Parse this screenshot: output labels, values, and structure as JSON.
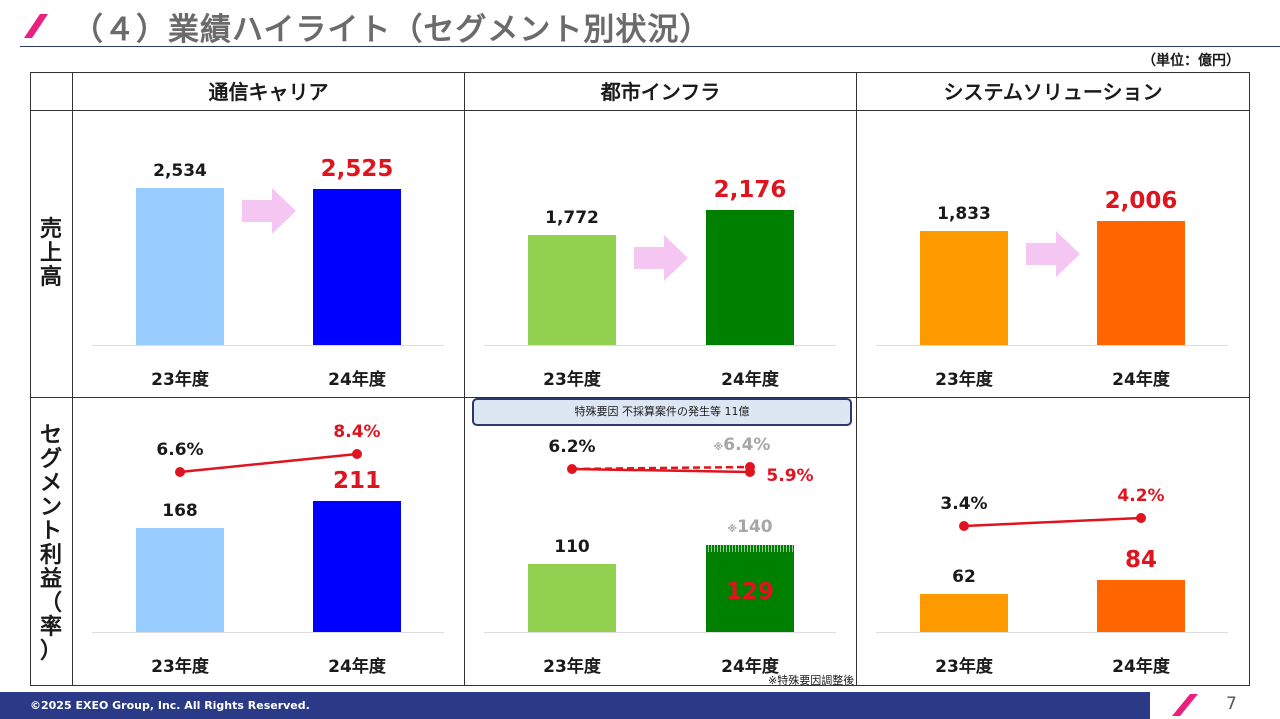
{
  "title": "（４）業績ハイライト（セグメント別状況）",
  "unit_label": "（単位：億円）",
  "columns": [
    "通信キャリア",
    "都市インフラ",
    "システムソリューション"
  ],
  "rows": [
    "売上高",
    "セグメント利益（率）"
  ],
  "note_box": "特殊要因  不採算案件の発生等   11億",
  "footnote": "※特殊要因調整後",
  "footer": {
    "copyright": "©2025 EXEO Group, Inc. All Rights Reserved.",
    "page": "7"
  },
  "colors": {
    "carrier_prev": "#99ccff",
    "carrier_curr": "#0000ff",
    "infra_prev": "#92d050",
    "infra_curr": "#008000",
    "system_prev": "#ff9900",
    "system_curr": "#ff6600",
    "highlight": "#e0141e",
    "arrow": "#f6c6f3",
    "brand": "#2b3a86",
    "accent": "#e8207e"
  },
  "chart_data": [
    {
      "type": "bar",
      "segment": "通信キャリア",
      "metric": "売上高",
      "categories": [
        "23年度",
        "24年度"
      ],
      "values": [
        2534,
        2525
      ],
      "labels": [
        "2,534",
        "2,525"
      ]
    },
    {
      "type": "bar",
      "segment": "都市インフラ",
      "metric": "売上高",
      "categories": [
        "23年度",
        "24年度"
      ],
      "values": [
        1772,
        2176
      ],
      "labels": [
        "1,772",
        "2,176"
      ]
    },
    {
      "type": "bar",
      "segment": "システムソリューション",
      "metric": "売上高",
      "categories": [
        "23年度",
        "24年度"
      ],
      "values": [
        1833,
        2006
      ],
      "labels": [
        "1,833",
        "2,006"
      ]
    },
    {
      "type": "bar",
      "segment": "通信キャリア",
      "metric": "セグメント利益",
      "categories": [
        "23年度",
        "24年度"
      ],
      "values": [
        168,
        211
      ],
      "labels": [
        "168",
        "211"
      ],
      "rate": [
        6.6,
        8.4
      ],
      "rate_labels": [
        "6.6%",
        "8.4%"
      ]
    },
    {
      "type": "bar",
      "segment": "都市インフラ",
      "metric": "セグメント利益",
      "categories": [
        "23年度",
        "24年度"
      ],
      "values": [
        110,
        129
      ],
      "labels": [
        "110",
        "129"
      ],
      "adjusted_value": 140,
      "adjusted_label": "140",
      "rate": [
        6.2,
        5.9
      ],
      "rate_labels": [
        "6.2%",
        "5.9%"
      ],
      "adjusted_rate": 6.4,
      "adjusted_rate_label": "6.4%",
      "adjusted_mark": "※"
    },
    {
      "type": "bar",
      "segment": "システムソリューション",
      "metric": "セグメント利益",
      "categories": [
        "23年度",
        "24年度"
      ],
      "values": [
        62,
        84
      ],
      "labels": [
        "62",
        "84"
      ],
      "rate": [
        3.4,
        4.2
      ],
      "rate_labels": [
        "3.4%",
        "4.2%"
      ]
    }
  ]
}
